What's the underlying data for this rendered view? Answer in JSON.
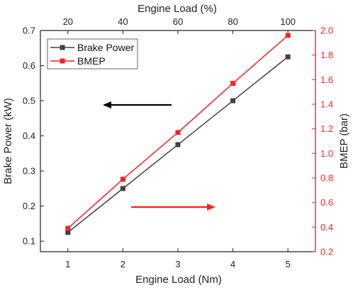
{
  "chart_data": {
    "type": "line",
    "x": [
      1,
      2,
      3,
      4,
      5
    ],
    "x_top": [
      20,
      40,
      60,
      80,
      100
    ],
    "xlabel": "Engine Load (Nm)",
    "xlabel_top": "Engine Load (%)",
    "ylabel_left": "Brake Power (kW)",
    "ylabel_right": "BMEP (bar)",
    "xlim": [
      0.5,
      5.5
    ],
    "ylim_left": [
      0.07,
      0.7
    ],
    "ylim_right": [
      0.2,
      2.0
    ],
    "xticks": [
      "1",
      "2",
      "3",
      "4",
      "5"
    ],
    "xticks_top": [
      "20",
      "40",
      "60",
      "80",
      "100"
    ],
    "yticks_left": [
      "0.1",
      "0.2",
      "0.3",
      "0.4",
      "0.5",
      "0.6",
      "0.7"
    ],
    "yticks_right": [
      "0.2",
      "0.4",
      "0.6",
      "0.8",
      "1.0",
      "1.2",
      "1.4",
      "1.6",
      "1.8",
      "2.0"
    ],
    "grid": false,
    "legend_position": "top-left",
    "series": [
      {
        "name": "Brake Power",
        "axis": "left",
        "color": "#404040",
        "marker": "square",
        "values": [
          0.125,
          0.25,
          0.375,
          0.5,
          0.625
        ]
      },
      {
        "name": "BMEP",
        "axis": "right",
        "color": "#ff2020",
        "marker": "square",
        "values": [
          0.39,
          0.79,
          1.17,
          1.57,
          1.96
        ]
      }
    ],
    "annotations": [
      {
        "type": "arrow",
        "direction": "left",
        "color": "#000000",
        "meaning": "Brake Power → left axis"
      },
      {
        "type": "arrow",
        "direction": "right",
        "color": "#ff2020",
        "meaning": "BMEP → right axis"
      }
    ],
    "colors": {
      "left_axis": "#222222",
      "right_axis": "#ff2020"
    }
  }
}
